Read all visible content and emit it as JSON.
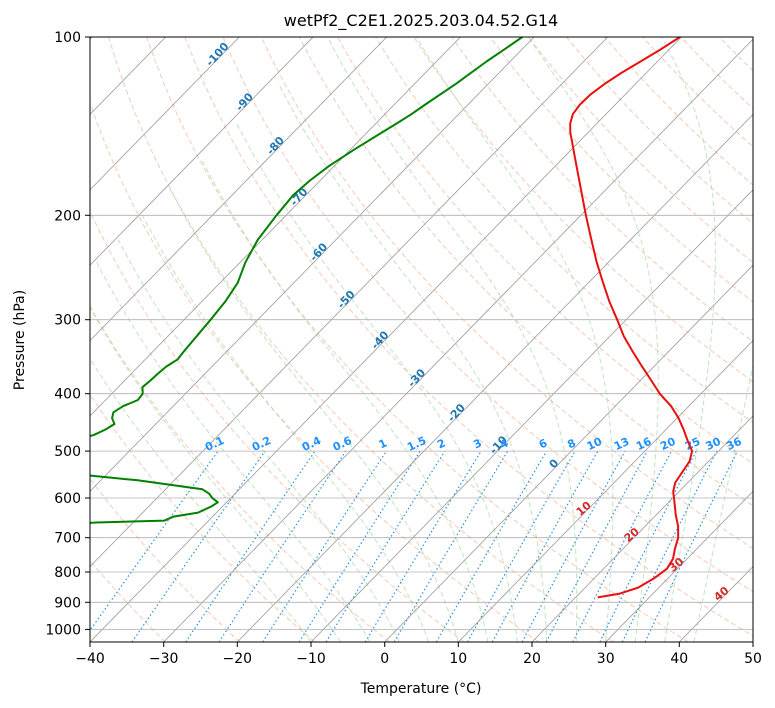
{
  "chart_data": {
    "type": "line",
    "title": "wetPf2_C2E1.2025.203.04.52.G14",
    "xlabel": "Temperature (°C)",
    "ylabel": "Pressure (hPa)",
    "xlim": [
      -40,
      50
    ],
    "ylim": [
      1050,
      100
    ],
    "y_scale": "log",
    "x_ticks": [
      -40,
      -30,
      -20,
      -10,
      0,
      10,
      20,
      30,
      40,
      50
    ],
    "y_ticks": [
      100,
      200,
      300,
      400,
      500,
      600,
      700,
      800,
      900,
      1000
    ],
    "grid": true,
    "colors": {
      "temperature": "#e8110f",
      "dewpoint": "#008000",
      "isotherm": "#999999",
      "dry_adiabat": "#f4a582",
      "moist_adiabat": "#a6d8a6",
      "mixing_ratio": "#1e88e5",
      "dry_label": "#1f77b4",
      "moist_label": "#d62728",
      "zero_label": "#777777"
    },
    "series": [
      {
        "key": "temperature",
        "pressure": [
          883,
          870,
          850,
          820,
          790,
          760,
          730,
          700,
          670,
          640,
          610,
          585,
          565,
          545,
          520,
          500,
          480,
          460,
          440,
          420,
          400,
          380,
          360,
          340,
          320,
          300,
          280,
          260,
          240,
          220,
          200,
          180,
          160,
          150,
          145,
          140,
          135,
          130,
          125,
          120,
          115,
          110,
          105,
          100
        ],
        "temperature": [
          23,
          25.5,
          27.2,
          28.1,
          28.6,
          28.1,
          27,
          26,
          24.5,
          22.6,
          20.8,
          19.2,
          18.3,
          17.9,
          17.4,
          16.4,
          14.4,
          12.4,
          10.2,
          7.6,
          4.4,
          1.5,
          -1.6,
          -4.8,
          -8.1,
          -11.2,
          -14.6,
          -18,
          -21.6,
          -25.3,
          -29.3,
          -33.6,
          -38.4,
          -41,
          -42.4,
          -43.6,
          -44.5,
          -44.8,
          -44.7,
          -44.2,
          -43.4,
          -42.3,
          -41.2,
          -40.2
        ]
      },
      {
        "key": "dewpoint",
        "pressure": [
          883,
          876,
          868,
          860,
          850,
          838,
          825,
          812,
          800,
          790,
          780,
          770,
          760,
          750,
          740,
          730,
          720,
          710,
          700,
          690,
          680,
          672,
          665,
          660,
          655,
          645,
          635,
          620,
          610,
          600,
          590,
          580,
          570,
          560,
          550,
          540,
          530,
          520,
          512,
          505,
          500,
          495,
          490,
          485,
          480,
          470,
          460,
          450,
          440,
          430,
          420,
          410,
          400,
          390,
          380,
          370,
          360,
          350,
          340,
          320,
          300,
          280,
          260,
          240,
          220,
          200,
          185,
          175,
          165,
          155,
          145,
          140,
          135,
          130,
          120,
          110,
          105,
          100
        ],
        "dewpoint": [
          -51.5,
          -53.6,
          -51.4,
          -53.4,
          -53.5,
          -55,
          -57,
          -56.6,
          -58,
          -56.9,
          -56,
          -56,
          -58,
          -59,
          -59.5,
          -60.6,
          -61,
          -60.3,
          -58.2,
          -59,
          -60.8,
          -61.4,
          -60,
          -55,
          -46,
          -45.3,
          -42.5,
          -41.5,
          -41.2,
          -42.5,
          -43.5,
          -45,
          -50,
          -55,
          -62,
          -66,
          -69,
          -70.6,
          -71.3,
          -71.7,
          -71.6,
          -71.3,
          -70.6,
          -70,
          -69.3,
          -67,
          -66.1,
          -65.6,
          -66.7,
          -67.3,
          -66.8,
          -65.6,
          -65.8,
          -66.7,
          -66.5,
          -66.4,
          -66.2,
          -65.6,
          -65.8,
          -66.1,
          -66.4,
          -66.8,
          -67.6,
          -69.3,
          -70.6,
          -71.3,
          -71.7,
          -71.4,
          -70.7,
          -69.5,
          -68,
          -67.2,
          -66.4,
          -65.8,
          -64.4,
          -63.2,
          -62.4,
          -61.6
        ]
      }
    ],
    "dry_adiabat_labels": [
      {
        "label": "-100",
        "p": 108
      },
      {
        "label": "-90",
        "p": 130
      },
      {
        "label": "-80",
        "p": 154
      },
      {
        "label": "-70",
        "p": 188
      },
      {
        "label": "-60",
        "p": 233
      },
      {
        "label": "-50",
        "p": 280
      },
      {
        "label": "-40",
        "p": 328
      },
      {
        "label": "-30",
        "p": 380
      },
      {
        "label": "-20",
        "p": 435
      },
      {
        "label": "-10",
        "p": 493
      },
      {
        "label": "0",
        "p": 530
      }
    ],
    "moist_adiabat_labels": [
      {
        "label": "10",
        "p": 632
      },
      {
        "label": "20",
        "p": 700
      },
      {
        "label": "30",
        "p": 786
      },
      {
        "label": "40",
        "p": 880
      }
    ],
    "mixing_ratio_labels": [
      "0.1",
      "0.2",
      "0.4",
      "0.6",
      "1",
      "1.5",
      "2",
      "3",
      "4",
      "6",
      "8",
      "10",
      "13",
      "16",
      "20",
      "25",
      "30",
      "36"
    ],
    "mixing_ratio_label_pressure": 500
  }
}
